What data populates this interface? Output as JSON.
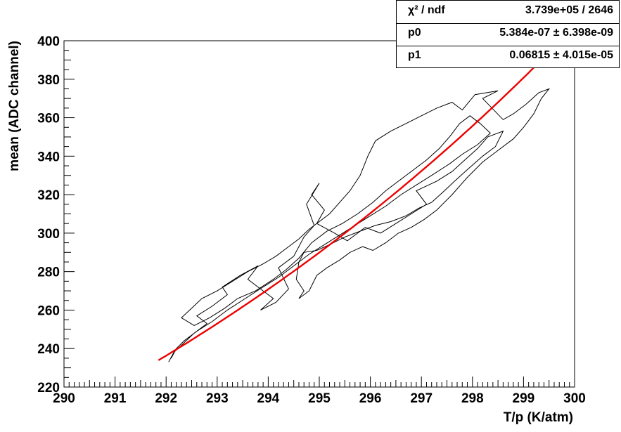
{
  "chart_data": {
    "type": "line",
    "title": "",
    "xlabel": "T/p (K/atm)",
    "ylabel": "mean (ADC channel)",
    "xlim": [
      290,
      300
    ],
    "ylim": [
      220,
      400
    ],
    "x_ticks": [
      "290",
      "291",
      "292",
      "293",
      "294",
      "295",
      "296",
      "297",
      "298",
      "299",
      "300"
    ],
    "y_ticks": [
      "220",
      "240",
      "260",
      "280",
      "300",
      "320",
      "340",
      "360",
      "380",
      "400"
    ],
    "grid": false,
    "stats": {
      "rows": [
        {
          "key": "χ² / ndf",
          "value": "3.739e+05 / 2646"
        },
        {
          "key": "p0",
          "value": "5.384e-07 ± 6.398e-09"
        },
        {
          "key": "p1",
          "value": "0.06815 ± 4.015e-05"
        }
      ]
    },
    "fit": {
      "name": "",
      "color": "#ee0000",
      "formula": "p0*exp(p1*x)",
      "p0": 5.384e-07,
      "p1": 0.06815,
      "x_range": [
        291.85,
        300
      ]
    },
    "series": [
      {
        "name": "",
        "color": "#000000",
        "points": [
          [
            292.05,
            233
          ],
          [
            292.15,
            238
          ],
          [
            292.35,
            243
          ],
          [
            292.55,
            248
          ],
          [
            292.8,
            253
          ],
          [
            292.6,
            257
          ],
          [
            292.9,
            262
          ],
          [
            293.2,
            268
          ],
          [
            293.1,
            272
          ],
          [
            293.45,
            278
          ],
          [
            293.8,
            283
          ],
          [
            293.6,
            276
          ],
          [
            293.9,
            270
          ],
          [
            294.1,
            266
          ],
          [
            293.85,
            260
          ],
          [
            294.15,
            264
          ],
          [
            294.4,
            271
          ],
          [
            294.2,
            282
          ],
          [
            294.5,
            288
          ],
          [
            294.7,
            298
          ],
          [
            294.9,
            304
          ],
          [
            294.75,
            315
          ],
          [
            295.0,
            326
          ],
          [
            294.85,
            320
          ],
          [
            295.1,
            312
          ],
          [
            294.95,
            305
          ],
          [
            295.3,
            300
          ],
          [
            295.55,
            296
          ],
          [
            295.9,
            303
          ],
          [
            296.2,
            300
          ],
          [
            296.5,
            305
          ],
          [
            296.8,
            310
          ],
          [
            297.1,
            315
          ],
          [
            296.9,
            322
          ],
          [
            297.3,
            327
          ],
          [
            297.6,
            332
          ],
          [
            297.85,
            338
          ],
          [
            298.1,
            344
          ],
          [
            298.3,
            350
          ],
          [
            298.6,
            353
          ],
          [
            298.45,
            345
          ],
          [
            298.2,
            340
          ],
          [
            297.9,
            333
          ],
          [
            297.65,
            327
          ],
          [
            297.45,
            322
          ],
          [
            297.2,
            316
          ],
          [
            296.95,
            313
          ],
          [
            296.7,
            309
          ],
          [
            296.4,
            306
          ],
          [
            296.1,
            304
          ],
          [
            295.8,
            301
          ],
          [
            295.5,
            298
          ],
          [
            295.2,
            294
          ],
          [
            294.95,
            291
          ],
          [
            294.7,
            290
          ],
          [
            294.6,
            285
          ],
          [
            294.55,
            276
          ],
          [
            294.7,
            270
          ],
          [
            294.6,
            266
          ],
          [
            294.8,
            270
          ],
          [
            294.95,
            278
          ],
          [
            295.15,
            282
          ],
          [
            295.4,
            286
          ],
          [
            295.6,
            290
          ],
          [
            295.85,
            293
          ],
          [
            296.05,
            291
          ],
          [
            296.3,
            295
          ],
          [
            296.55,
            300
          ],
          [
            296.8,
            303
          ],
          [
            297.05,
            307
          ],
          [
            297.3,
            312
          ],
          [
            297.6,
            320
          ],
          [
            297.9,
            329
          ],
          [
            298.2,
            337
          ],
          [
            298.5,
            343
          ],
          [
            298.8,
            349
          ],
          [
            299.0,
            355
          ],
          [
            299.2,
            362
          ],
          [
            299.35,
            370
          ],
          [
            299.5,
            375
          ],
          [
            299.3,
            373
          ],
          [
            299.05,
            367
          ],
          [
            298.8,
            362
          ],
          [
            298.6,
            359
          ],
          [
            298.2,
            370
          ],
          [
            298.5,
            374
          ],
          [
            298.05,
            372
          ],
          [
            297.8,
            364
          ],
          [
            297.6,
            368
          ],
          [
            297.3,
            365
          ],
          [
            297.0,
            361
          ],
          [
            296.7,
            357
          ],
          [
            296.4,
            353
          ],
          [
            296.1,
            348
          ],
          [
            295.95,
            340
          ],
          [
            295.8,
            330
          ],
          [
            295.6,
            322
          ],
          [
            295.4,
            316
          ],
          [
            295.2,
            310
          ],
          [
            295.0,
            306
          ],
          [
            294.8,
            302
          ],
          [
            294.6,
            297
          ],
          [
            294.4,
            293
          ],
          [
            294.15,
            288
          ],
          [
            293.9,
            284
          ],
          [
            293.6,
            280
          ],
          [
            293.3,
            275
          ],
          [
            293.0,
            270
          ],
          [
            292.7,
            266
          ],
          [
            292.5,
            261
          ],
          [
            292.3,
            256
          ],
          [
            292.55,
            252
          ],
          [
            292.85,
            256
          ],
          [
            293.15,
            261
          ],
          [
            293.4,
            266
          ],
          [
            293.75,
            270
          ],
          [
            294.1,
            276
          ],
          [
            294.35,
            281
          ],
          [
            294.6,
            287
          ],
          [
            294.85,
            295
          ],
          [
            295.15,
            301
          ],
          [
            295.45,
            305
          ],
          [
            295.75,
            310
          ],
          [
            296.05,
            316
          ],
          [
            296.3,
            322
          ],
          [
            296.55,
            327
          ],
          [
            296.85,
            333
          ],
          [
            297.1,
            338
          ],
          [
            297.35,
            344
          ],
          [
            297.55,
            350
          ],
          [
            297.75,
            357
          ],
          [
            297.95,
            361
          ],
          [
            298.15,
            357
          ],
          [
            298.35,
            352
          ],
          [
            298.1,
            346
          ],
          [
            297.8,
            341
          ],
          [
            297.55,
            336
          ],
          [
            297.2,
            330
          ],
          [
            296.9,
            325
          ],
          [
            296.6,
            320
          ],
          [
            296.3,
            314
          ],
          [
            296.0,
            309
          ],
          [
            295.7,
            304
          ],
          [
            295.4,
            299
          ],
          [
            295.1,
            294
          ],
          [
            294.8,
            289
          ],
          [
            294.5,
            283
          ],
          [
            294.2,
            277
          ],
          [
            293.9,
            272
          ],
          [
            293.55,
            266
          ],
          [
            293.2,
            260
          ],
          [
            292.9,
            254
          ],
          [
            292.6,
            249
          ],
          [
            292.35,
            244
          ],
          [
            292.2,
            240
          ],
          [
            292.1,
            235
          ]
        ]
      }
    ]
  }
}
